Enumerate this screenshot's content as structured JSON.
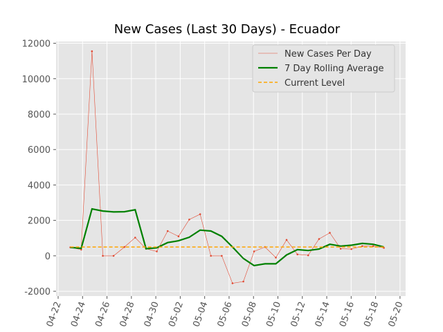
{
  "chart_data": {
    "type": "line",
    "title": "New Cases (Last 30 Days) - Ecuador",
    "x": [
      1,
      1.89,
      2.77,
      3.66,
      4.54,
      5.43,
      6.31,
      7.2,
      8.08,
      8.97,
      9.86,
      10.74,
      11.63,
      12.51,
      13.4,
      14.28,
      15.17,
      16.05,
      16.94,
      17.83,
      18.71,
      19.6,
      20.48,
      21.37,
      22.25,
      23.14,
      24.02,
      24.91,
      25.8,
      26.68
    ],
    "series": [
      {
        "name": "New Cases Per Day",
        "color": "#e24a33",
        "style": "thin-markers",
        "values": [
          480,
          350,
          11550,
          0,
          0,
          500,
          1030,
          400,
          250,
          1400,
          1100,
          2050,
          2350,
          0,
          0,
          -1550,
          -1450,
          250,
          500,
          -100,
          900,
          80,
          30,
          950,
          1300,
          400,
          380,
          550,
          550,
          450
        ]
      },
      {
        "name": "7 Day Rolling Average",
        "color": "#008000",
        "style": "thick",
        "values": [
          480,
          420,
          2650,
          2530,
          2480,
          2490,
          2600,
          400,
          450,
          750,
          850,
          1050,
          1450,
          1400,
          1100,
          500,
          -150,
          -550,
          -450,
          -450,
          50,
          350,
          300,
          380,
          650,
          550,
          600,
          700,
          650,
          500
        ]
      },
      {
        "name": "Current Level",
        "color": "#ffa500",
        "style": "dashed",
        "values": [
          500,
          500,
          500,
          500,
          500,
          500,
          500,
          500,
          500,
          500,
          500,
          500,
          500,
          500,
          500,
          500,
          500,
          500,
          500,
          500,
          500,
          500,
          500,
          500,
          500,
          500,
          500,
          500,
          500,
          500
        ]
      }
    ],
    "xlim": [
      -0.17,
      28.46
    ],
    "xticks": [
      {
        "value": 0,
        "label": "04-22"
      },
      {
        "value": 2,
        "label": "04-24"
      },
      {
        "value": 4,
        "label": "04-26"
      },
      {
        "value": 6,
        "label": "04-28"
      },
      {
        "value": 8,
        "label": "04-30"
      },
      {
        "value": 10,
        "label": "05-02"
      },
      {
        "value": 12,
        "label": "05-04"
      },
      {
        "value": 14,
        "label": "05-06"
      },
      {
        "value": 16,
        "label": "05-08"
      },
      {
        "value": 18,
        "label": "05-10"
      },
      {
        "value": 20,
        "label": "05-12"
      },
      {
        "value": 22,
        "label": "05-14"
      },
      {
        "value": 24,
        "label": "05-16"
      },
      {
        "value": 26,
        "label": "05-18"
      },
      {
        "value": 28,
        "label": "05-20"
      }
    ],
    "ylim": [
      -2270,
      12100
    ],
    "yticks": [
      -2000,
      0,
      2000,
      4000,
      6000,
      8000,
      10000,
      12000
    ],
    "grid": true,
    "legend": "upper right"
  }
}
